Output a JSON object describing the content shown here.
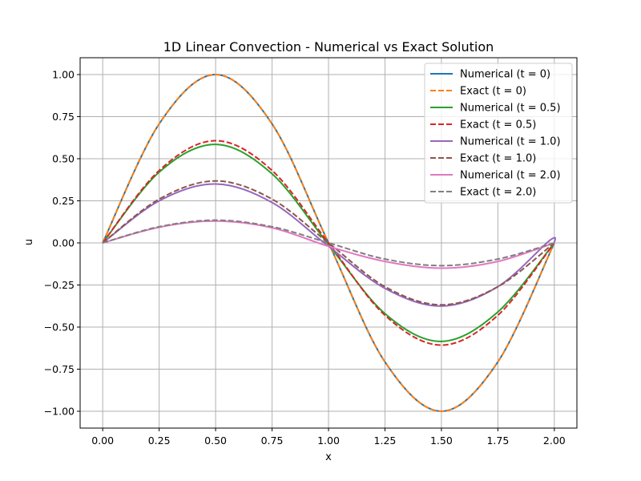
{
  "chart_data": {
    "type": "line",
    "title": "1D Linear Convection - Numerical vs Exact Solution",
    "xlabel": "x",
    "ylabel": "u",
    "xlim": [
      -0.1,
      2.1
    ],
    "ylim": [
      -1.1,
      1.1
    ],
    "xticks": [
      0.0,
      0.25,
      0.5,
      0.75,
      1.0,
      1.25,
      1.5,
      1.75,
      2.0
    ],
    "xtick_labels": [
      "0.00",
      "0.25",
      "0.50",
      "0.75",
      "1.00",
      "1.25",
      "1.50",
      "1.75",
      "2.00"
    ],
    "yticks": [
      -1.0,
      -0.75,
      -0.5,
      -0.25,
      0.0,
      0.25,
      0.5,
      0.75,
      1.0
    ],
    "ytick_labels": [
      "−1.00",
      "−0.75",
      "−0.50",
      "−0.25",
      "0.00",
      "0.25",
      "0.50",
      "0.75",
      "1.00"
    ],
    "grid": true,
    "legend_position": "top-right",
    "x_range": [
      0,
      2
    ],
    "series": [
      {
        "name": "Numerical (t = 0)",
        "color": "#1f77b4",
        "style": "solid",
        "x": [
          0,
          0.25,
          0.5,
          0.75,
          1.0,
          1.25,
          1.5,
          1.75,
          2.0
        ],
        "y": [
          0,
          0.707,
          1.0,
          0.707,
          0,
          -0.707,
          -1.0,
          -0.707,
          0
        ]
      },
      {
        "name": "Exact (t = 0)",
        "color": "#ff7f0e",
        "style": "dashed",
        "x": [
          0,
          0.25,
          0.5,
          0.75,
          1.0,
          1.25,
          1.5,
          1.75,
          2.0
        ],
        "y": [
          0,
          0.707,
          1.0,
          0.707,
          0,
          -0.707,
          -1.0,
          -0.707,
          0
        ]
      },
      {
        "name": "Numerical (t = 0.5)",
        "color": "#2ca02c",
        "style": "solid",
        "x": [
          0,
          0.25,
          0.5,
          0.75,
          1.0,
          1.25,
          1.5,
          1.75,
          2.0
        ],
        "y": [
          0,
          0.42,
          0.585,
          0.41,
          -0.01,
          -0.42,
          -0.585,
          -0.41,
          0
        ]
      },
      {
        "name": "Exact (t = 0.5)",
        "color": "#d62728",
        "style": "dashed",
        "x": [
          0,
          0.25,
          0.5,
          0.75,
          1.0,
          1.25,
          1.5,
          1.75,
          2.0
        ],
        "y": [
          0,
          0.43,
          0.607,
          0.43,
          0,
          -0.43,
          -0.607,
          -0.43,
          0
        ]
      },
      {
        "name": "Numerical (t = 1.0)",
        "color": "#9467bd",
        "style": "solid",
        "x": [
          0,
          0.25,
          0.5,
          0.75,
          1.0,
          1.25,
          1.5,
          1.75,
          1.98,
          2.0
        ],
        "y": [
          0,
          0.25,
          0.35,
          0.24,
          -0.02,
          -0.27,
          -0.375,
          -0.26,
          0.015,
          0
        ]
      },
      {
        "name": "Exact (t = 1.0)",
        "color": "#8c564b",
        "style": "dashed",
        "x": [
          0,
          0.25,
          0.5,
          0.75,
          1.0,
          1.25,
          1.5,
          1.75,
          2.0
        ],
        "y": [
          0,
          0.26,
          0.368,
          0.26,
          0,
          -0.26,
          -0.368,
          -0.26,
          0
        ]
      },
      {
        "name": "Numerical (t = 2.0)",
        "color": "#e377c2",
        "style": "solid",
        "x": [
          0,
          0.25,
          0.5,
          0.75,
          1.0,
          1.25,
          1.5,
          1.75,
          2.0
        ],
        "y": [
          0,
          0.093,
          0.13,
          0.09,
          -0.02,
          -0.11,
          -0.15,
          -0.11,
          0
        ]
      },
      {
        "name": "Exact (t = 2.0)",
        "color": "#7f7f7f",
        "style": "dashed",
        "x": [
          0,
          0.25,
          0.5,
          0.75,
          1.0,
          1.25,
          1.5,
          1.75,
          2.0
        ],
        "y": [
          0,
          0.096,
          0.135,
          0.096,
          0,
          -0.096,
          -0.135,
          -0.096,
          0
        ]
      }
    ]
  }
}
